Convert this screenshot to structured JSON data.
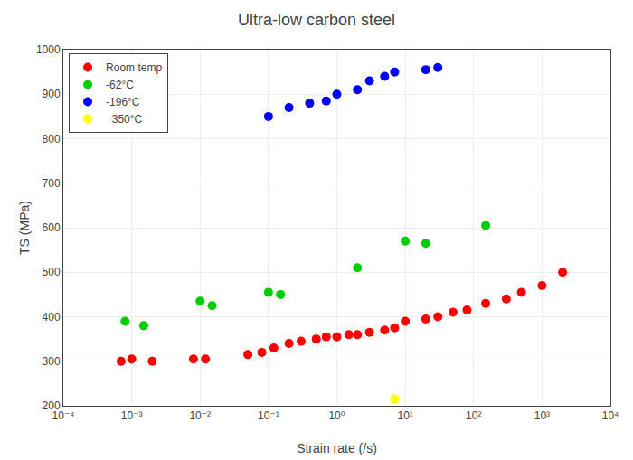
{
  "chart_data": {
    "type": "scatter",
    "title": "Ultra-low carbon steel",
    "x_label": "Strain rate (/s)",
    "y_label": "TS (MPa)",
    "log": "x",
    "xlim": [
      0.0001,
      10000
    ],
    "ylim": [
      200,
      1000
    ],
    "xticks": [
      {
        "value": 0.0001,
        "label": "10⁻⁴"
      },
      {
        "value": 0.001,
        "label": "10⁻³"
      },
      {
        "value": 0.01,
        "label": "10⁻²"
      },
      {
        "value": 0.1,
        "label": "10⁻¹"
      },
      {
        "value": 1,
        "label": "10⁰"
      },
      {
        "value": 10,
        "label": "10¹"
      },
      {
        "value": 100,
        "label": "10²"
      },
      {
        "value": 1000,
        "label": "10³"
      },
      {
        "value": 10000,
        "label": "10⁴"
      }
    ],
    "yticks": [
      200,
      300,
      400,
      500,
      600,
      700,
      800,
      900,
      1000
    ],
    "grid": true,
    "legend": "upper left",
    "series": [
      {
        "name": "Room temp",
        "color": "#FF0000",
        "x": [
          0.0007,
          0.001,
          0.002,
          0.008,
          0.012,
          0.05,
          0.08,
          0.12,
          0.2,
          0.3,
          0.5,
          0.7,
          1.0,
          1.5,
          2.0,
          3.0,
          5.0,
          7.0,
          10.0,
          20.0,
          30.0,
          50.0,
          80.0,
          150,
          300,
          500,
          1000,
          2000
        ],
        "values": [
          300,
          305,
          300,
          305,
          305,
          315,
          320,
          330,
          340,
          345,
          350,
          355,
          355,
          360,
          360,
          365,
          370,
          375,
          390,
          395,
          400,
          410,
          415,
          430,
          440,
          455,
          470,
          500
        ]
      },
      {
        "name": "-62°C",
        "color": "#00CC00",
        "x": [
          0.0008,
          0.0015,
          0.01,
          0.015,
          0.1,
          0.15,
          2.0,
          10.0,
          20.0,
          150
        ],
        "values": [
          390,
          380,
          435,
          425,
          455,
          450,
          510,
          570,
          565,
          605
        ]
      },
      {
        "name": "-196°C",
        "color": "#0000FF",
        "x": [
          0.1,
          0.2,
          0.4,
          0.7,
          1.0,
          2.0,
          3.0,
          5.0,
          7.0,
          20.0,
          30.0
        ],
        "values": [
          850,
          870,
          880,
          885,
          900,
          910,
          930,
          940,
          950,
          955,
          960
        ]
      },
      {
        "name": "  350°C",
        "color": "#FFFF00",
        "x": [
          7.0
        ],
        "values": [
          215
        ]
      }
    ]
  }
}
